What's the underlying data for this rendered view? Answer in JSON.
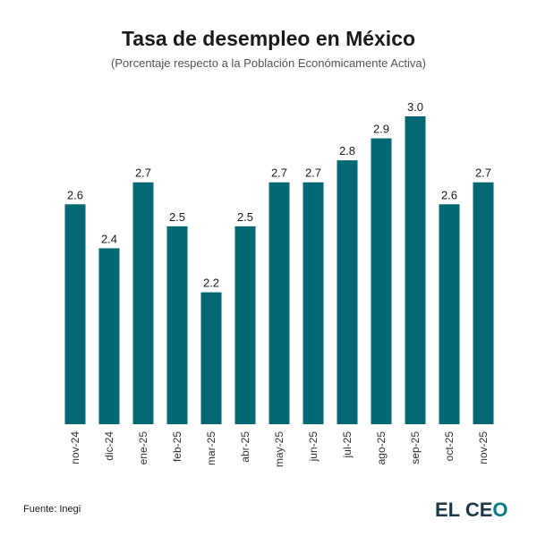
{
  "header": {
    "title": "Tasa de desempleo en México",
    "subtitle": "(Porcentaje respecto a la Población Económicamente Activa)"
  },
  "footer": {
    "source": "Fuente: Inegi",
    "logo_main": "EL CE",
    "logo_accent": "O"
  },
  "colors": {
    "bar": "#036873",
    "logo_text": "#1d3a4a",
    "logo_accent": "#0a7a8a"
  },
  "chart_data": {
    "type": "bar",
    "title": "Tasa de desempleo en México",
    "subtitle": "(Porcentaje respecto a la Población Económicamente Activa)",
    "categories": [
      "nov-24",
      "dic-24",
      "ene-25",
      "feb-25",
      "mar-25",
      "abr-25",
      "may-25",
      "jun-25",
      "jul-25",
      "ago-25",
      "sep-25",
      "oct-25",
      "nov-25"
    ],
    "values": [
      2.6,
      2.4,
      2.7,
      2.5,
      2.2,
      2.5,
      2.7,
      2.7,
      2.8,
      2.9,
      3.0,
      2.6,
      2.7
    ],
    "value_labels": [
      "2.6",
      "2.4",
      "2.7",
      "2.5",
      "2.2",
      "2.5",
      "2.7",
      "2.7",
      "2.8",
      "2.9",
      "3.0",
      "2.6",
      "2.7"
    ],
    "xlabel": "",
    "ylabel": "",
    "ylim": [
      1.6,
      3.0
    ],
    "grid": false,
    "legend": "none"
  }
}
